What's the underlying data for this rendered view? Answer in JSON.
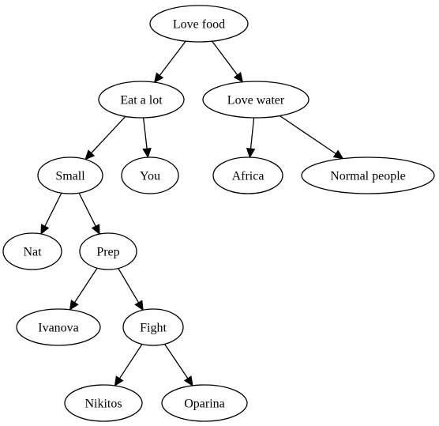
{
  "diagram": {
    "nodes": [
      {
        "id": "love_food",
        "label": "Love food"
      },
      {
        "id": "eat_a_lot",
        "label": "Eat a lot"
      },
      {
        "id": "love_water",
        "label": "Love water"
      },
      {
        "id": "small",
        "label": "Small"
      },
      {
        "id": "you",
        "label": "You"
      },
      {
        "id": "africa",
        "label": "Africa"
      },
      {
        "id": "normal_people",
        "label": "Normal people"
      },
      {
        "id": "nat",
        "label": "Nat"
      },
      {
        "id": "prep",
        "label": "Prep"
      },
      {
        "id": "ivanova",
        "label": "Ivanova"
      },
      {
        "id": "fight",
        "label": "Fight"
      },
      {
        "id": "nikitos",
        "label": "Nikitos"
      },
      {
        "id": "oparina",
        "label": "Oparina"
      }
    ],
    "edges": [
      {
        "from": "love_food",
        "to": "eat_a_lot"
      },
      {
        "from": "love_food",
        "to": "love_water"
      },
      {
        "from": "eat_a_lot",
        "to": "small"
      },
      {
        "from": "eat_a_lot",
        "to": "you"
      },
      {
        "from": "love_water",
        "to": "africa"
      },
      {
        "from": "love_water",
        "to": "normal_people"
      },
      {
        "from": "small",
        "to": "nat"
      },
      {
        "from": "small",
        "to": "prep"
      },
      {
        "from": "prep",
        "to": "ivanova"
      },
      {
        "from": "prep",
        "to": "fight"
      },
      {
        "from": "fight",
        "to": "nikitos"
      },
      {
        "from": "fight",
        "to": "oparina"
      }
    ]
  }
}
